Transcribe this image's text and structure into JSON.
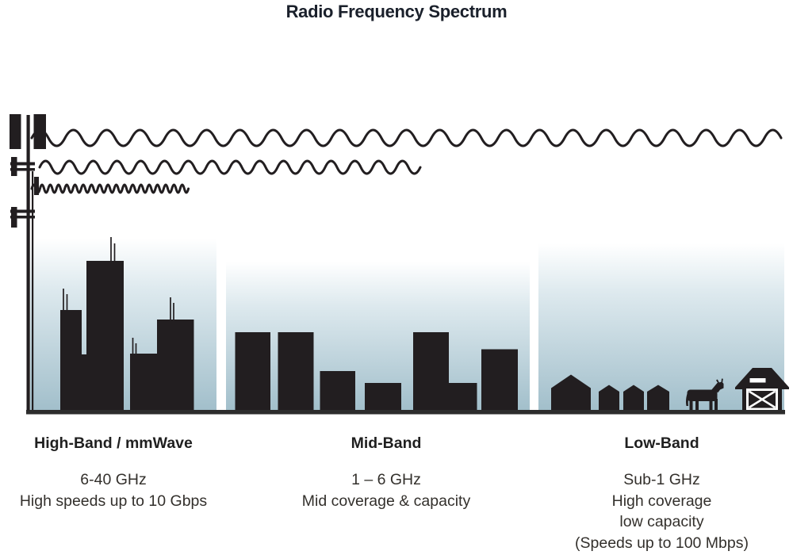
{
  "title": "Radio Frequency Spectrum",
  "colors": {
    "ink": "#221e20",
    "ground": "#2d2d2d",
    "sky-top": "#ffffff",
    "sky-mid": "#dde9ee",
    "sky-bottom": "#a2bfcb",
    "title-ink": "#1a202b",
    "heading-ink": "#1f1f1f",
    "body-ink": "#33302c"
  },
  "icons": {
    "tower": "cell-tower-icon",
    "long_wave": "low-frequency-wave-icon",
    "medium_wave": "mid-frequency-wave-icon",
    "short_wave": "high-frequency-wave-icon",
    "city": "city-skyline-icon",
    "midband_buildings": "mid-rise-buildings-icon",
    "houses": "rural-houses-icon",
    "cow": "cow-icon",
    "barn": "barn-icon"
  },
  "bands": [
    {
      "label": "High-Band / mmWave",
      "lines": [
        "6-40 GHz",
        "High speeds up to 10 Gbps"
      ]
    },
    {
      "label": "Mid-Band",
      "lines": [
        "1 – 6 GHz",
        "Mid coverage & capacity"
      ]
    },
    {
      "label": "Low-Band",
      "lines": [
        "Sub-1 GHz",
        "High coverage",
        "low capacity",
        "(Speeds up to 100 Mbps)"
      ]
    }
  ]
}
